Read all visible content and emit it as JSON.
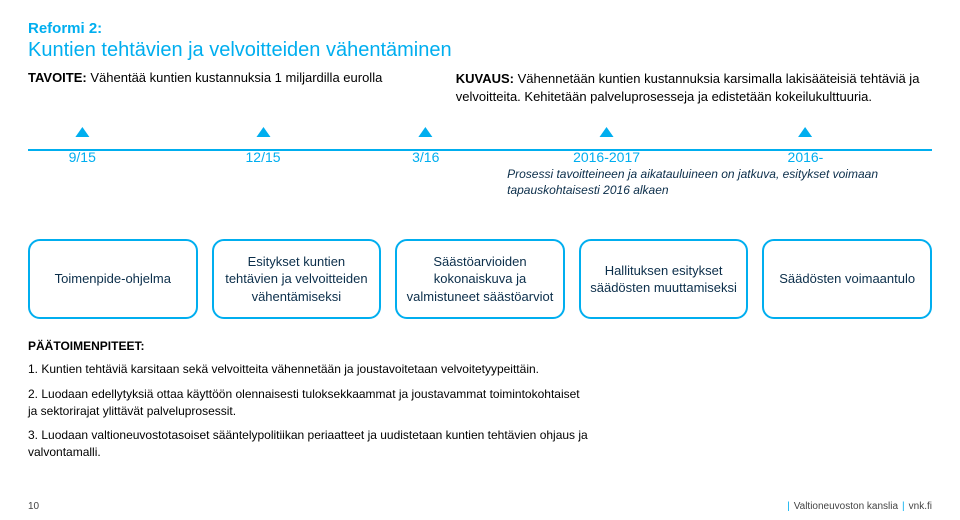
{
  "header": {
    "reformi": "Reformi 2:",
    "title": "Kuntien tehtävien ja velvoitteiden vähentäminen",
    "tavoite_label": "TAVOITE:",
    "tavoite_text": " Vähentää kuntien kustannuksia 1 miljardilla eurolla",
    "kuvaus_label": "KUVAUS:",
    "kuvaus_text": " Vähennetään kuntien kustannuksia karsimalla lakisääteisiä tehtäviä ja velvoitteita. Kehitetään palveluprosesseja ja edistetään kokeilukulttuuria."
  },
  "timeline": {
    "ticks": [
      "9/15",
      "12/15",
      "3/16",
      "2016-2017",
      "2016-"
    ],
    "process_note": "Prosessi tavoitteineen ja aikatauluineen on jatkuva, esitykset voimaan tapauskohtaisesti 2016 alkaen",
    "line_color": "#00aeef",
    "tick_color": "#00aeef",
    "label_color": "#00aeef",
    "label_fontsize": 14
  },
  "boxes": [
    "Toimenpide-ohjelma",
    "Esitykset kuntien tehtävien ja velvoitteiden vähentämiseksi",
    "Säästöarvioiden kokonaiskuva ja valmistuneet säästöarviot",
    "Hallituksen esitykset säädösten muuttamiseksi",
    "Säädösten voimaantulo"
  ],
  "box_style": {
    "border_color": "#00aeef",
    "border_radius": 12,
    "text_color": "#0b2e4a",
    "fontsize": 13
  },
  "footer": {
    "heading": "PÄÄTOIMENPITEET:",
    "steps": [
      "1. Kuntien tehtäviä karsitaan sekä velvoitteita vähennetään ja joustavoitetaan velvoitetyypeittäin.",
      "2. Luodaan edellytyksiä ottaa käyttöön olennaisesti tuloksekkaammat ja joustavammat toimintokohtaiset ja sektorirajat ylittävät palveluprosessit.",
      "3. Luodaan valtioneuvostotasoiset sääntelypolitiikan periaatteet ja uudistetaan kuntien tehtävien ohjaus ja valvontamalli."
    ]
  },
  "bottom": {
    "page_num": "10",
    "source": "Valtioneuvoston kanslia",
    "site": "vnk.fi"
  },
  "colors": {
    "accent": "#00aeef",
    "text_dark": "#0b2e4a",
    "background": "#ffffff"
  }
}
